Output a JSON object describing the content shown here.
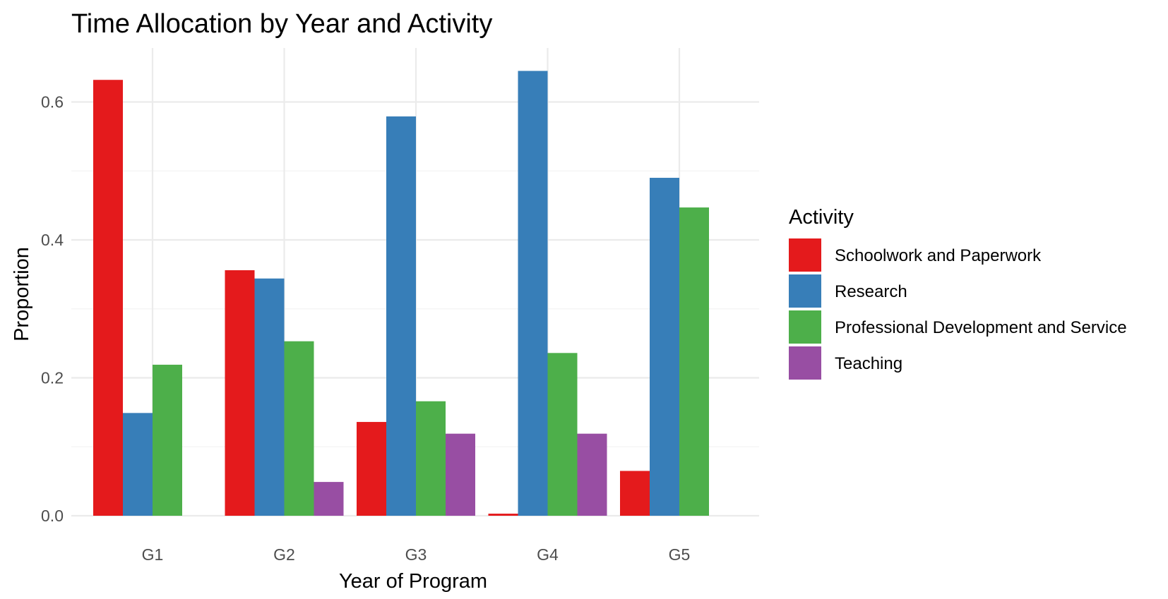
{
  "chart_data": {
    "type": "bar",
    "title": "Time Allocation by Year and Activity",
    "xlabel": "Year of Program",
    "ylabel": "Proportion",
    "categories": [
      "G1",
      "G2",
      "G3",
      "G4",
      "G5"
    ],
    "ylim": [
      0,
      0.68
    ],
    "yticks": [
      0.0,
      0.2,
      0.4,
      0.6
    ],
    "ytick_labels": [
      "0.0",
      "0.2",
      "0.4",
      "0.6"
    ],
    "grid": true,
    "legend": {
      "title": "Activity",
      "position": "right"
    },
    "series": [
      {
        "name": "Schoolwork and Paperwork",
        "color": "#E41A1C",
        "values": [
          0.632,
          0.356,
          0.136,
          0.003,
          0.065
        ]
      },
      {
        "name": "Research",
        "color": "#377EB8",
        "values": [
          0.149,
          0.344,
          0.579,
          0.645,
          0.49
        ]
      },
      {
        "name": "Professional Development and Service",
        "color": "#4DAF4A",
        "values": [
          0.219,
          0.253,
          0.166,
          0.236,
          0.447
        ]
      },
      {
        "name": "Teaching",
        "color": "#984EA3",
        "values": [
          0.0,
          0.049,
          0.119,
          0.119,
          0.0
        ]
      }
    ]
  }
}
